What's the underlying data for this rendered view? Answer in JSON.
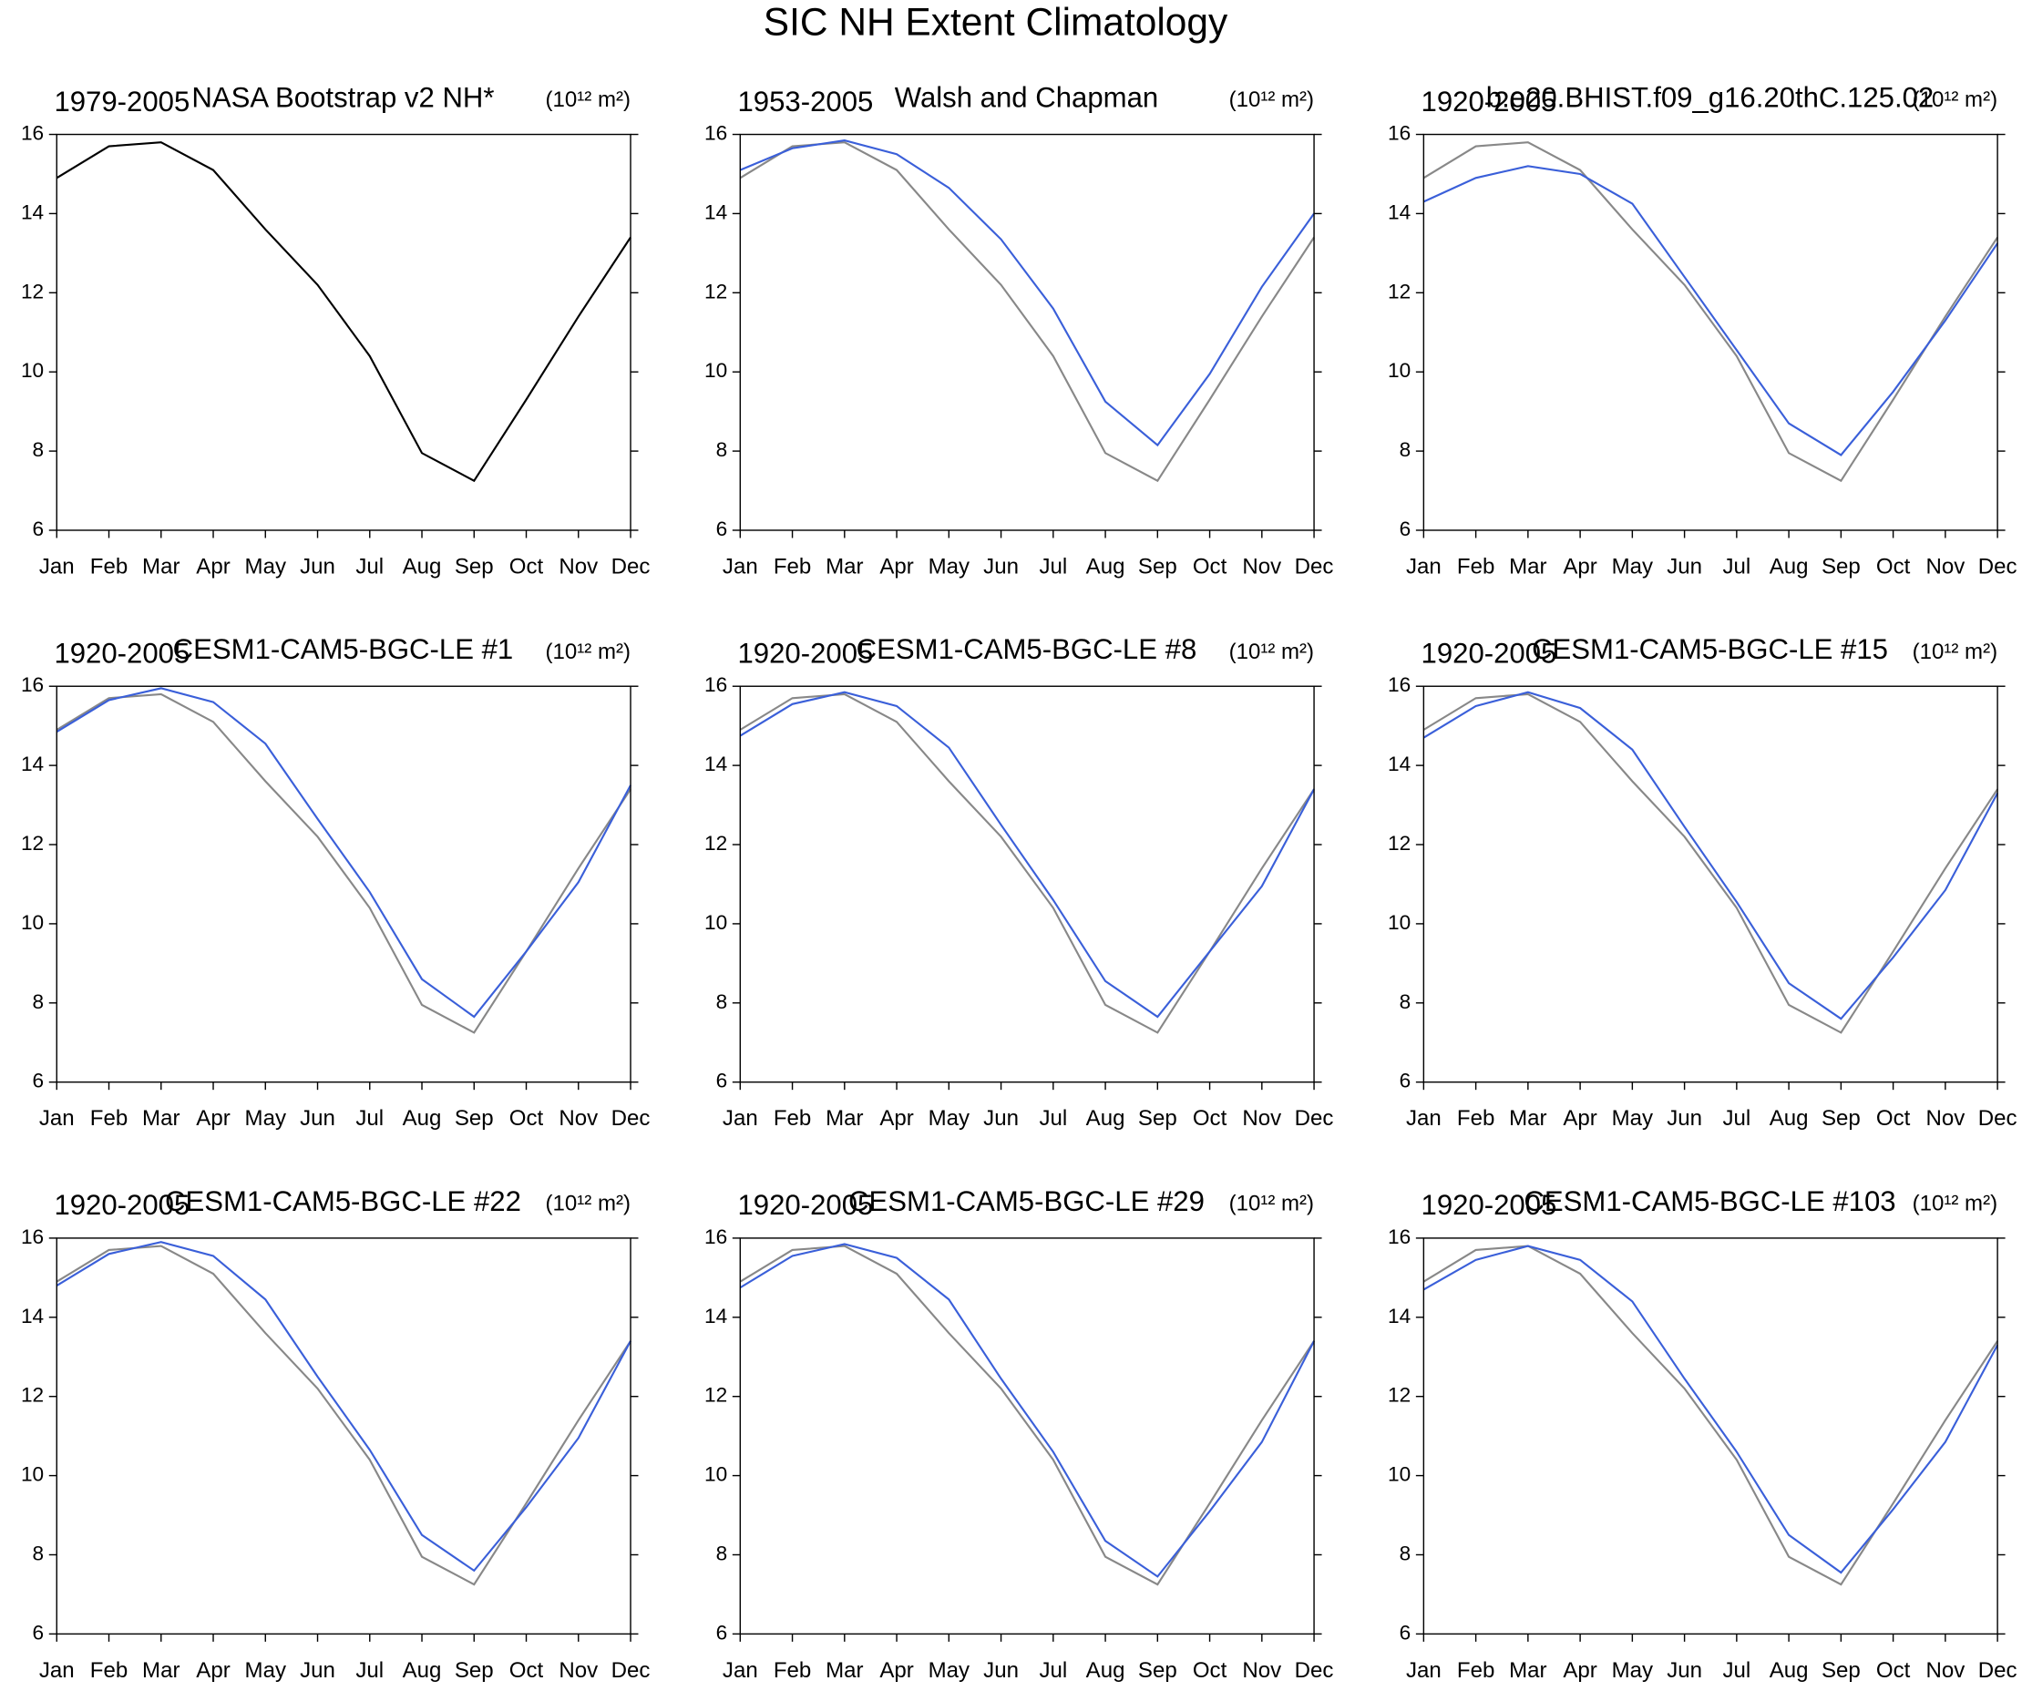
{
  "title": "SIC NH Extent Climatology",
  "chart_data": [
    {
      "type": "line",
      "period": "1979-2005",
      "title": "NASA Bootstrap v2 NH*",
      "units": "(10¹² m²)",
      "categories": [
        "Jan",
        "Feb",
        "Mar",
        "Apr",
        "May",
        "Jun",
        "Jul",
        "Aug",
        "Sep",
        "Oct",
        "Nov",
        "Dec"
      ],
      "series": [
        {
          "color": "#000000",
          "values": [
            14.9,
            15.7,
            15.8,
            15.1,
            13.6,
            12.2,
            10.4,
            7.95,
            7.25,
            9.3,
            11.4,
            13.4
          ]
        }
      ],
      "ylim": [
        6,
        16
      ],
      "yticks": [
        6,
        8,
        10,
        12,
        14,
        16
      ]
    },
    {
      "type": "line",
      "period": "1953-2005",
      "title": "Walsh and Chapman",
      "units": "(10¹² m²)",
      "categories": [
        "Jan",
        "Feb",
        "Mar",
        "Apr",
        "May",
        "Jun",
        "Jul",
        "Aug",
        "Sep",
        "Oct",
        "Nov",
        "Dec"
      ],
      "series": [
        {
          "color": "#888888",
          "values": [
            14.9,
            15.7,
            15.8,
            15.1,
            13.6,
            12.2,
            10.4,
            7.95,
            7.25,
            9.3,
            11.4,
            13.4
          ]
        },
        {
          "color": "#3a5fd9",
          "values": [
            15.1,
            15.65,
            15.85,
            15.5,
            14.65,
            13.35,
            11.6,
            9.25,
            8.15,
            9.95,
            12.15,
            14.0
          ]
        }
      ],
      "ylim": [
        6,
        16
      ],
      "yticks": [
        6,
        8,
        10,
        12,
        14,
        16
      ]
    },
    {
      "type": "line",
      "period": "1920-2005",
      "title": "b.e20.BHIST.f09_g16.20thC.125.02",
      "units": "(10¹² m²)",
      "categories": [
        "Jan",
        "Feb",
        "Mar",
        "Apr",
        "May",
        "Jun",
        "Jul",
        "Aug",
        "Sep",
        "Oct",
        "Nov",
        "Dec"
      ],
      "series": [
        {
          "color": "#888888",
          "values": [
            14.9,
            15.7,
            15.8,
            15.1,
            13.6,
            12.2,
            10.4,
            7.95,
            7.25,
            9.3,
            11.4,
            13.4
          ]
        },
        {
          "color": "#3a5fd9",
          "values": [
            14.3,
            14.9,
            15.2,
            15.0,
            14.25,
            12.4,
            10.55,
            8.7,
            7.9,
            9.5,
            11.3,
            13.25
          ]
        }
      ],
      "ylim": [
        6,
        16
      ],
      "yticks": [
        6,
        8,
        10,
        12,
        14,
        16
      ]
    },
    {
      "type": "line",
      "period": "1920-2005",
      "title": "CESM1-CAM5-BGC-LE #1",
      "units": "(10¹² m²)",
      "categories": [
        "Jan",
        "Feb",
        "Mar",
        "Apr",
        "May",
        "Jun",
        "Jul",
        "Aug",
        "Sep",
        "Oct",
        "Nov",
        "Dec"
      ],
      "series": [
        {
          "color": "#888888",
          "values": [
            14.9,
            15.7,
            15.8,
            15.1,
            13.6,
            12.2,
            10.4,
            7.95,
            7.25,
            9.3,
            11.4,
            13.4
          ]
        },
        {
          "color": "#3a5fd9",
          "values": [
            14.85,
            15.65,
            15.95,
            15.6,
            14.55,
            12.65,
            10.8,
            8.6,
            7.65,
            9.3,
            11.05,
            13.5
          ]
        }
      ],
      "ylim": [
        6,
        16
      ],
      "yticks": [
        6,
        8,
        10,
        12,
        14,
        16
      ]
    },
    {
      "type": "line",
      "period": "1920-2005",
      "title": "CESM1-CAM5-BGC-LE #8",
      "units": "(10¹² m²)",
      "categories": [
        "Jan",
        "Feb",
        "Mar",
        "Apr",
        "May",
        "Jun",
        "Jul",
        "Aug",
        "Sep",
        "Oct",
        "Nov",
        "Dec"
      ],
      "series": [
        {
          "color": "#888888",
          "values": [
            14.9,
            15.7,
            15.8,
            15.1,
            13.6,
            12.2,
            10.4,
            7.95,
            7.25,
            9.3,
            11.4,
            13.4
          ]
        },
        {
          "color": "#3a5fd9",
          "values": [
            14.75,
            15.55,
            15.85,
            15.5,
            14.45,
            12.5,
            10.6,
            8.55,
            7.65,
            9.3,
            10.95,
            13.4
          ]
        }
      ],
      "ylim": [
        6,
        16
      ],
      "yticks": [
        6,
        8,
        10,
        12,
        14,
        16
      ]
    },
    {
      "type": "line",
      "period": "1920-2005",
      "title": "CESM1-CAM5-BGC-LE #15",
      "units": "(10¹² m²)",
      "categories": [
        "Jan",
        "Feb",
        "Mar",
        "Apr",
        "May",
        "Jun",
        "Jul",
        "Aug",
        "Sep",
        "Oct",
        "Nov",
        "Dec"
      ],
      "series": [
        {
          "color": "#888888",
          "values": [
            14.9,
            15.7,
            15.8,
            15.1,
            13.6,
            12.2,
            10.4,
            7.95,
            7.25,
            9.3,
            11.4,
            13.4
          ]
        },
        {
          "color": "#3a5fd9",
          "values": [
            14.7,
            15.5,
            15.85,
            15.45,
            14.4,
            12.45,
            10.55,
            8.5,
            7.6,
            9.15,
            10.85,
            13.3
          ]
        }
      ],
      "ylim": [
        6,
        16
      ],
      "yticks": [
        6,
        8,
        10,
        12,
        14,
        16
      ]
    },
    {
      "type": "line",
      "period": "1920-2005",
      "title": "CESM1-CAM5-BGC-LE #22",
      "units": "(10¹² m²)",
      "categories": [
        "Jan",
        "Feb",
        "Mar",
        "Apr",
        "May",
        "Jun",
        "Jul",
        "Aug",
        "Sep",
        "Oct",
        "Nov",
        "Dec"
      ],
      "series": [
        {
          "color": "#888888",
          "values": [
            14.9,
            15.7,
            15.8,
            15.1,
            13.6,
            12.2,
            10.4,
            7.95,
            7.25,
            9.3,
            11.4,
            13.4
          ]
        },
        {
          "color": "#3a5fd9",
          "values": [
            14.8,
            15.6,
            15.9,
            15.55,
            14.45,
            12.5,
            10.65,
            8.5,
            7.6,
            9.2,
            10.95,
            13.4
          ]
        }
      ],
      "ylim": [
        6,
        16
      ],
      "yticks": [
        6,
        8,
        10,
        12,
        14,
        16
      ]
    },
    {
      "type": "line",
      "period": "1920-2005",
      "title": "CESM1-CAM5-BGC-LE #29",
      "units": "(10¹² m²)",
      "categories": [
        "Jan",
        "Feb",
        "Mar",
        "Apr",
        "May",
        "Jun",
        "Jul",
        "Aug",
        "Sep",
        "Oct",
        "Nov",
        "Dec"
      ],
      "series": [
        {
          "color": "#888888",
          "values": [
            14.9,
            15.7,
            15.8,
            15.1,
            13.6,
            12.2,
            10.4,
            7.95,
            7.25,
            9.3,
            11.4,
            13.4
          ]
        },
        {
          "color": "#3a5fd9",
          "values": [
            14.75,
            15.55,
            15.85,
            15.5,
            14.45,
            12.45,
            10.6,
            8.35,
            7.45,
            9.1,
            10.85,
            13.4
          ]
        }
      ],
      "ylim": [
        6,
        16
      ],
      "yticks": [
        6,
        8,
        10,
        12,
        14,
        16
      ]
    },
    {
      "type": "line",
      "period": "1920-2005",
      "title": "CESM1-CAM5-BGC-LE #103",
      "units": "(10¹² m²)",
      "categories": [
        "Jan",
        "Feb",
        "Mar",
        "Apr",
        "May",
        "Jun",
        "Jul",
        "Aug",
        "Sep",
        "Oct",
        "Nov",
        "Dec"
      ],
      "series": [
        {
          "color": "#888888",
          "values": [
            14.9,
            15.7,
            15.8,
            15.1,
            13.6,
            12.2,
            10.4,
            7.95,
            7.25,
            9.3,
            11.4,
            13.4
          ]
        },
        {
          "color": "#3a5fd9",
          "values": [
            14.7,
            15.45,
            15.8,
            15.45,
            14.4,
            12.45,
            10.6,
            8.5,
            7.55,
            9.15,
            10.85,
            13.3
          ]
        }
      ],
      "ylim": [
        6,
        16
      ],
      "yticks": [
        6,
        8,
        10,
        12,
        14,
        16
      ]
    }
  ]
}
